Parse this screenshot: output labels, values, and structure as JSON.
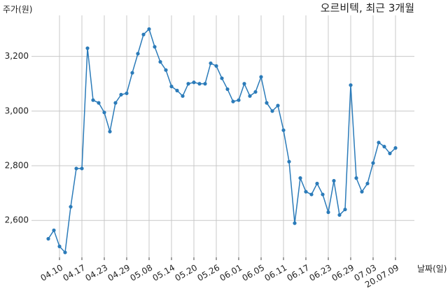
{
  "chart_data": {
    "type": "line",
    "title": "오르비텍, 최근 3개월",
    "y_label": "주가(원)",
    "x_label": "날짜(일)",
    "categories": [
      null,
      null,
      "04.10",
      null,
      null,
      null,
      "04.17",
      null,
      null,
      null,
      "04.23",
      null,
      null,
      null,
      "04.29",
      null,
      null,
      null,
      "05.08",
      null,
      null,
      null,
      "05.14",
      null,
      null,
      null,
      "05.20",
      null,
      null,
      null,
      "05.26",
      null,
      null,
      null,
      "06.01",
      null,
      null,
      null,
      "06.05",
      null,
      null,
      null,
      "06.11",
      null,
      null,
      null,
      "06.17",
      null,
      null,
      null,
      "06.23",
      null,
      null,
      null,
      "06.29",
      null,
      null,
      null,
      "07.03",
      null,
      null,
      null,
      "20.07.09"
    ],
    "series": [
      {
        "name": "주가",
        "color": "#2b7bb9",
        "values": [
          2533,
          2564,
          2505,
          2483,
          2650,
          2790,
          2790,
          3230,
          3040,
          3030,
          2995,
          2925,
          3030,
          3060,
          3065,
          3140,
          3210,
          3280,
          3300,
          3235,
          3180,
          3150,
          3090,
          3075,
          3055,
          3100,
          3105,
          3100,
          3100,
          3175,
          3165,
          3120,
          3080,
          3035,
          3040,
          3100,
          3055,
          3070,
          3125,
          3030,
          3000,
          3020,
          2930,
          2815,
          2590,
          2755,
          2705,
          2695,
          2735,
          2695,
          2630,
          2745,
          2620,
          2640,
          3095,
          2755,
          2705,
          2735,
          2810,
          2885,
          2870,
          2845,
          2865
        ]
      }
    ],
    "ylim": [
      2465,
      3350
    ],
    "yticks": [
      {
        "value": 2600,
        "label": "2,600"
      },
      {
        "value": 2800,
        "label": "2,800"
      },
      {
        "value": 3000,
        "label": "3,000"
      },
      {
        "value": 3200,
        "label": "3,200"
      }
    ],
    "grid": true
  }
}
